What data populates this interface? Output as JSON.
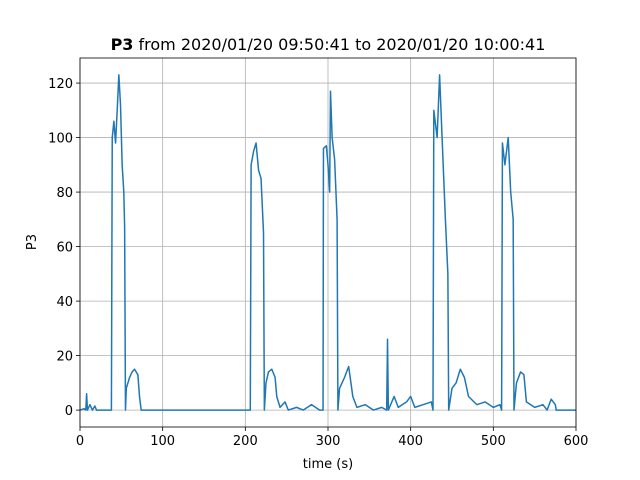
{
  "chart_data": {
    "type": "line",
    "title_bold": "P3",
    "title": "from 2020/01/20 09:50:41 to 2020/01/20 10:00:41",
    "x_label": "time (s)",
    "y_label": "P3",
    "xlim": [
      0,
      600
    ],
    "ylim": [
      -6.2,
      129.2
    ],
    "xticks": [
      0,
      100,
      200,
      300,
      400,
      500,
      600
    ],
    "yticks": [
      0,
      20,
      40,
      60,
      80,
      100,
      120
    ],
    "grid": true,
    "series": [
      {
        "name": "P3",
        "color": "#1f77b4",
        "x": [
          0,
          5,
          7,
          8,
          9,
          12,
          15,
          18,
          20,
          30,
          38,
          39,
          41,
          43,
          45,
          47,
          49,
          51,
          53,
          54,
          55,
          56,
          60,
          63,
          66,
          70,
          72,
          74,
          200,
          206,
          207,
          210,
          213,
          216,
          219,
          222,
          223,
          225,
          228,
          232,
          236,
          238,
          242,
          248,
          252,
          262,
          270,
          280,
          290,
          294,
          294.5,
          298,
          300,
          302,
          303,
          305,
          308,
          311,
          312,
          314,
          320,
          325,
          330,
          335,
          345,
          355,
          365,
          371,
          372,
          373,
          380,
          385,
          395,
          400,
          405,
          415,
          425,
          427,
          428,
          432,
          435,
          438,
          442,
          445,
          446,
          450,
          455,
          460,
          465,
          470,
          480,
          490,
          500,
          508,
          510,
          511,
          514,
          518,
          521,
          524,
          525,
          528,
          533,
          537,
          540,
          550,
          560,
          565,
          570,
          575,
          576,
          600
        ],
        "values": [
          0,
          0.5,
          0,
          6,
          0,
          2,
          0,
          1.5,
          0,
          0,
          0,
          100,
          106,
          98,
          110,
          123,
          112,
          90,
          80,
          67,
          0,
          8,
          12,
          14,
          15,
          13,
          5,
          0,
          0,
          0,
          90,
          95,
          98,
          88,
          85,
          65,
          0,
          10,
          14,
          15,
          12,
          5,
          1,
          3,
          0,
          1,
          0,
          2,
          0,
          0,
          96,
          97,
          90,
          80,
          117,
          100,
          92,
          70,
          0,
          8,
          12,
          16,
          5,
          1,
          2,
          0,
          1,
          0,
          26,
          0,
          5,
          1,
          3,
          5,
          1,
          2,
          3,
          0,
          110,
          100,
          123,
          100,
          70,
          50,
          0,
          8,
          10,
          15,
          12,
          5,
          2,
          3,
          1,
          2,
          0,
          98,
          90,
          100,
          80,
          70,
          0,
          10,
          14,
          13,
          3,
          1,
          2,
          0,
          4,
          2,
          0,
          0
        ]
      }
    ]
  }
}
